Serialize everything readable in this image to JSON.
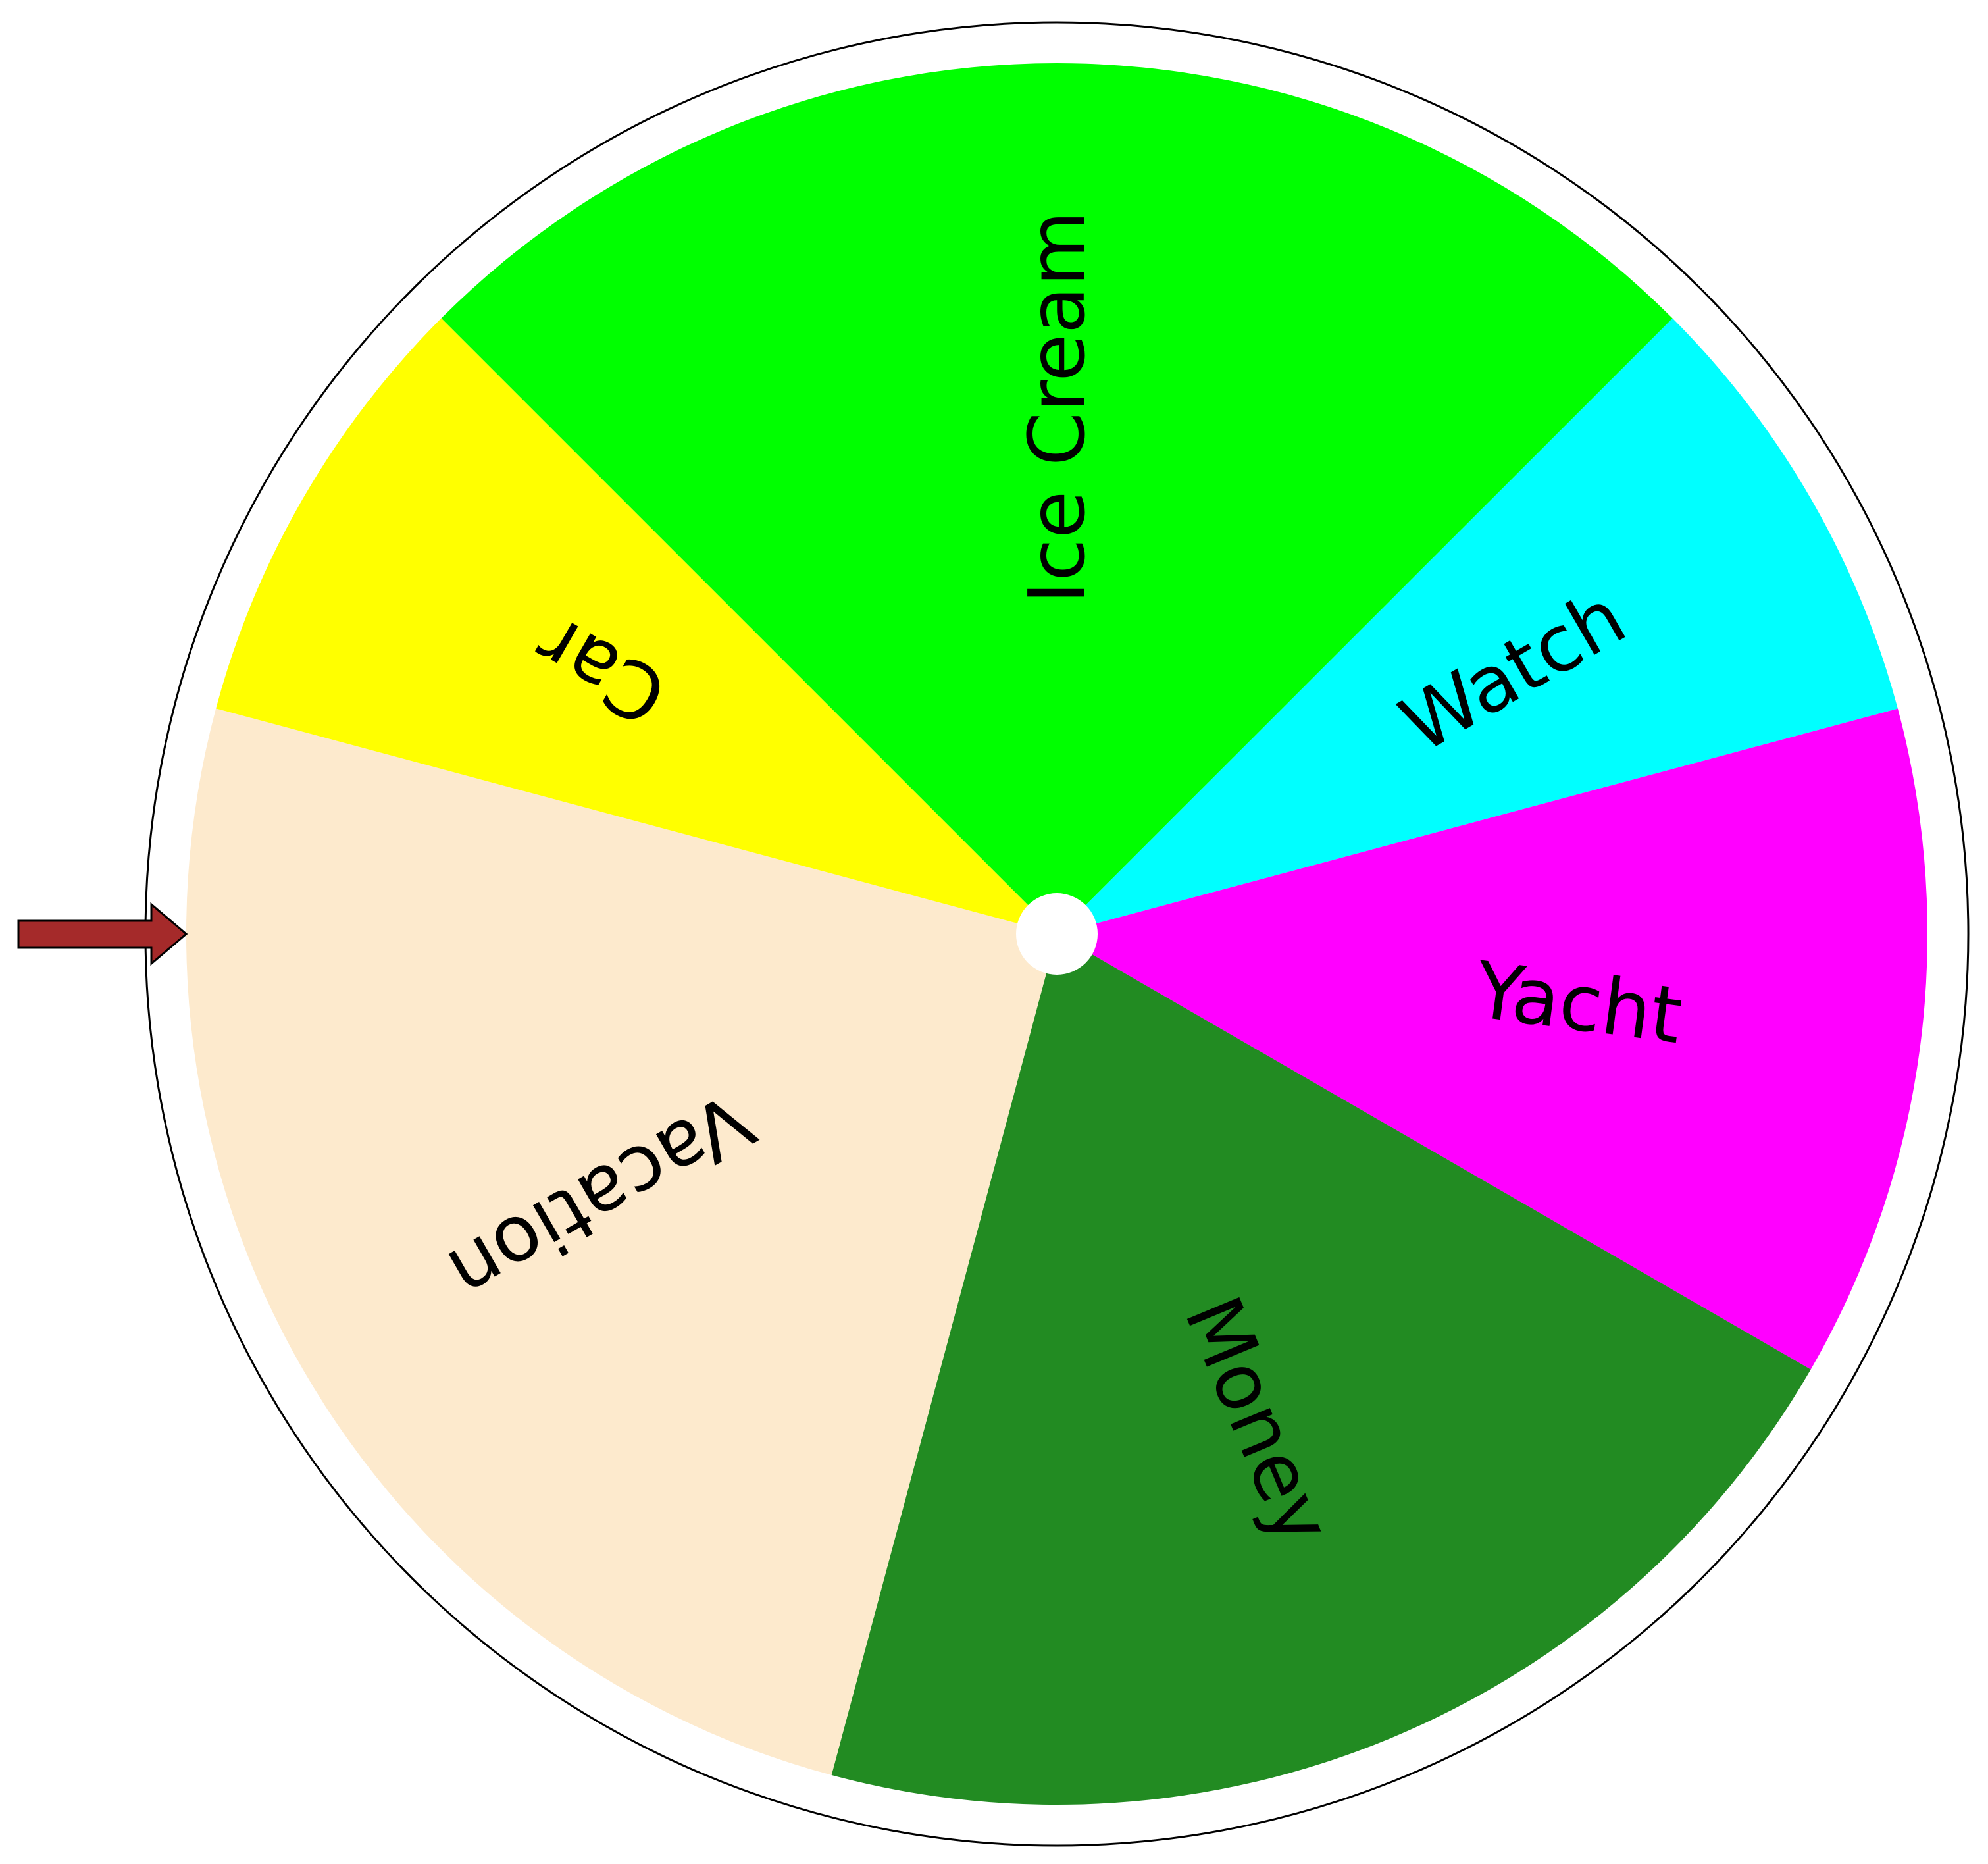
{
  "wheel": {
    "segments": [
      {
        "label": "Ice Cream",
        "color": "#00ff00",
        "share": 0.25
      },
      {
        "label": "Watch",
        "color": "#00ffff",
        "share": 0.0833
      },
      {
        "label": "Yacht",
        "color": "#ff00ff",
        "share": 0.125
      },
      {
        "label": "Money",
        "color": "#228b22",
        "share": 0.2083
      },
      {
        "label": "Vacation",
        "color": "#fdeacd",
        "share": 0.25
      },
      {
        "label": "Car",
        "color": "#ffff00",
        "share": 0.0833
      }
    ],
    "rim_color": "#ffffff",
    "outline_color": "#000000",
    "hub_color": "#ffffff",
    "pointer": {
      "icon": "arrow-right-icon",
      "color": "#a52a2a",
      "outline_color": "#000000",
      "selected_label": "Vacation"
    }
  }
}
